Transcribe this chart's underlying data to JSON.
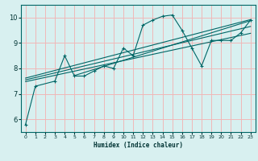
{
  "title": "",
  "xlabel": "Humidex (Indice chaleur)",
  "ylabel": "",
  "bg_color": "#d8f0f0",
  "line_color": "#006666",
  "grid_color": "#f0b8b8",
  "xlim": [
    -0.5,
    23.5
  ],
  "ylim": [
    5.5,
    10.5
  ],
  "yticks": [
    6,
    7,
    8,
    9,
    10
  ],
  "xticks": [
    0,
    1,
    2,
    3,
    4,
    5,
    6,
    7,
    8,
    9,
    10,
    11,
    12,
    13,
    14,
    15,
    16,
    17,
    18,
    19,
    20,
    21,
    22,
    23
  ],
  "main_series": [
    [
      0,
      5.8
    ],
    [
      1,
      7.3
    ],
    [
      3,
      7.5
    ],
    [
      4,
      8.5
    ],
    [
      5,
      7.7
    ],
    [
      6,
      7.7
    ],
    [
      7,
      7.9
    ],
    [
      8,
      8.1
    ],
    [
      9,
      8.0
    ],
    [
      10,
      8.8
    ],
    [
      11,
      8.5
    ],
    [
      12,
      9.7
    ],
    [
      13,
      9.9
    ],
    [
      14,
      10.05
    ],
    [
      15,
      10.1
    ],
    [
      16,
      9.5
    ],
    [
      17,
      8.8
    ],
    [
      18,
      8.1
    ],
    [
      19,
      9.1
    ],
    [
      20,
      9.1
    ],
    [
      21,
      9.1
    ],
    [
      22,
      9.4
    ],
    [
      23,
      9.9
    ]
  ],
  "trend_line1": [
    [
      0,
      7.62
    ],
    [
      23,
      9.92
    ]
  ],
  "trend_line2": [
    [
      0,
      7.55
    ],
    [
      23,
      9.65
    ]
  ],
  "trend_line3": [
    [
      0,
      7.48
    ],
    [
      23,
      9.38
    ]
  ],
  "trend_line4": [
    [
      5,
      7.72
    ],
    [
      23,
      9.88
    ]
  ]
}
